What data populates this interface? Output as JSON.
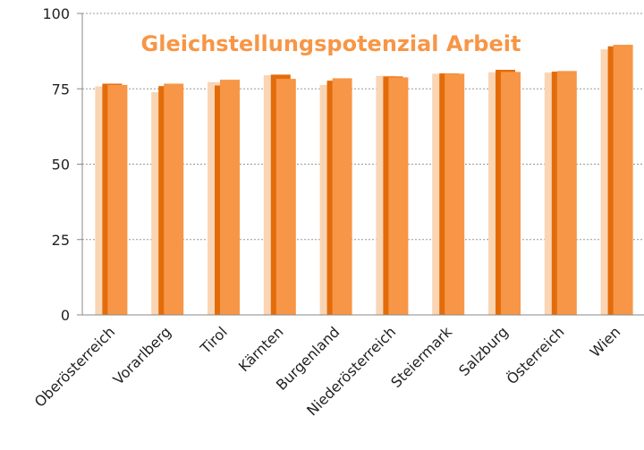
{
  "chart_data": {
    "type": "bar",
    "title": "Gleichstellungspotenzial Arbeit",
    "categories": [
      "Oberösterreich",
      "Vorarlberg",
      "Tirol",
      "Kärnten",
      "Burgenland",
      "Niederösterreich",
      "Steiermark",
      "Salzburg",
      "Österreich",
      "Wien"
    ],
    "series": [
      {
        "color": "#fad5b4",
        "values": [
          75.8,
          73.9,
          77.2,
          79.5,
          76.3,
          79.3,
          80.0,
          80.5,
          80.4,
          88.1
        ]
      },
      {
        "color": "#e36c0a",
        "values": [
          76.7,
          75.9,
          76.1,
          79.7,
          77.7,
          79.1,
          80.1,
          81.3,
          80.7,
          89.1
        ]
      },
      {
        "color": "#f79646",
        "values": [
          76.3,
          76.7,
          78.0,
          78.3,
          78.5,
          78.8,
          80.0,
          80.6,
          80.9,
          89.6
        ]
      }
    ],
    "ylim": [
      0,
      100
    ],
    "yticks": [
      0,
      25,
      50,
      75,
      100
    ],
    "grid": true
  }
}
